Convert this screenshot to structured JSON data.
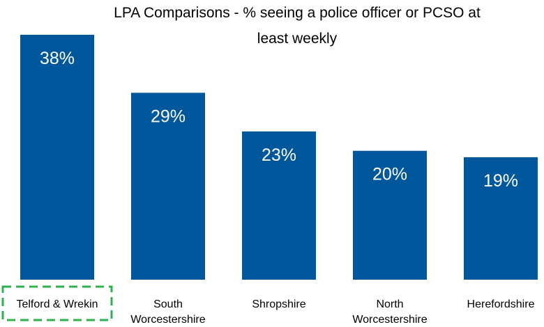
{
  "chart_data": {
    "type": "bar",
    "title_lines": [
      "LPA Comparisons - % seeing a police officer or PCSO at",
      "least weekly"
    ],
    "categories": [
      "Telford & Wrekin",
      "South Worcestershire",
      "Shropshire",
      "North Worcestershire",
      "Herefordshire"
    ],
    "category_lines": [
      [
        "Telford & Wrekin"
      ],
      [
        "South",
        "Worcestershire"
      ],
      [
        "Shropshire"
      ],
      [
        "North",
        "Worcestershire"
      ],
      [
        "Herefordshire"
      ]
    ],
    "values": [
      38,
      29,
      23,
      20,
      19
    ],
    "value_labels": [
      "38%",
      "29%",
      "23%",
      "20%",
      "19%"
    ],
    "ylim": [
      0,
      38
    ],
    "bar_color": "#00579b",
    "highlight": {
      "category": "Telford & Wrekin",
      "color": "#2db14f",
      "style": "dashed-box"
    },
    "xlabel": "",
    "ylabel": "",
    "grid": false,
    "legend": false
  }
}
